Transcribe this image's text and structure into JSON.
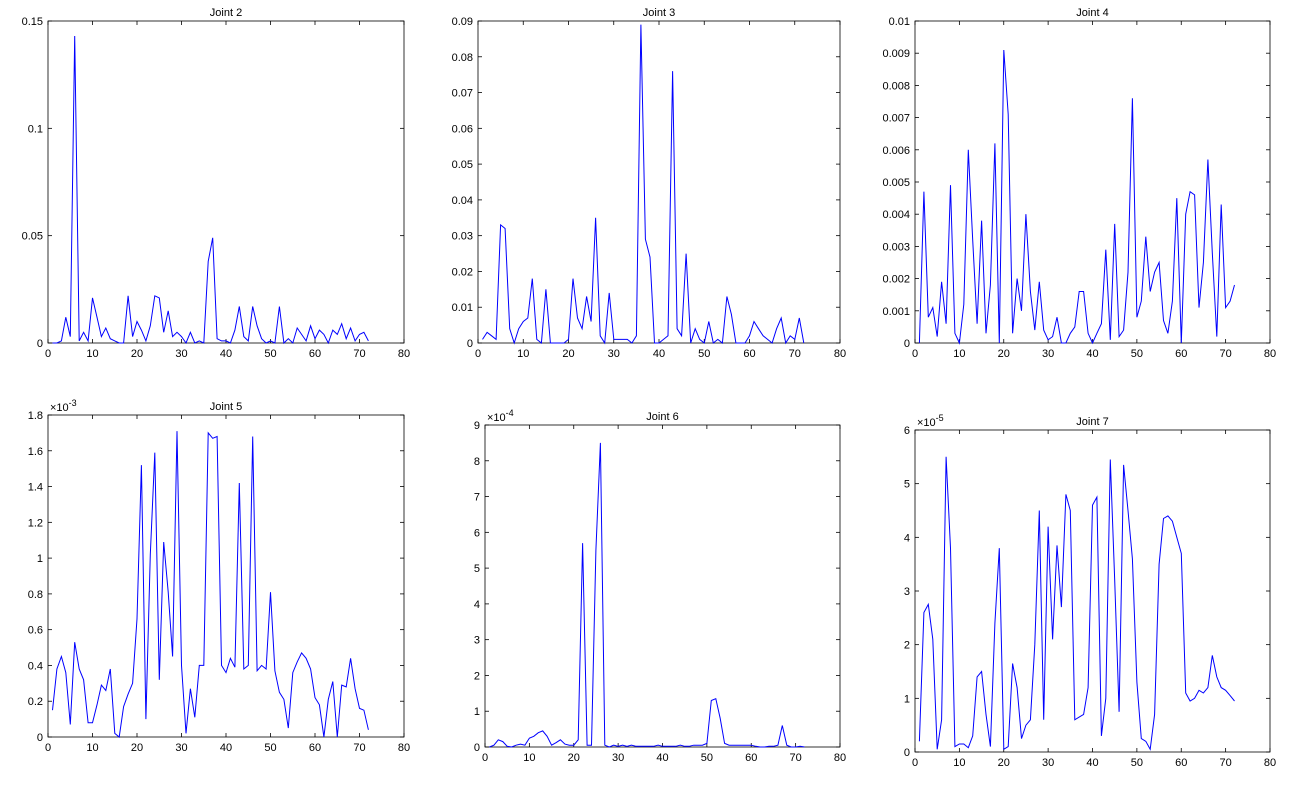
{
  "chart_data": [
    {
      "type": "line",
      "title": "Joint 2",
      "xlim": [
        0,
        80
      ],
      "ylim": [
        0,
        0.15
      ],
      "xticks": [
        "0",
        "10",
        "20",
        "30",
        "40",
        "50",
        "60",
        "70",
        "80"
      ],
      "yticks": [
        "0",
        "0.05",
        "0.1",
        "0.15"
      ],
      "exponent": "",
      "color": "#0000ff",
      "x": [
        1,
        2,
        3,
        4,
        5,
        6,
        7,
        8,
        9,
        10,
        11,
        12,
        13,
        14,
        15,
        16,
        17,
        18,
        19,
        20,
        21,
        22,
        23,
        24,
        25,
        26,
        27,
        28,
        29,
        30,
        31,
        32,
        33,
        34,
        35,
        36,
        37,
        38,
        39,
        40,
        41,
        42,
        43,
        44,
        45,
        46,
        47,
        48,
        49,
        50,
        51,
        52,
        53,
        54,
        55,
        56,
        57,
        58,
        59,
        60,
        61,
        62,
        63,
        64,
        65,
        66,
        67,
        68,
        69,
        70,
        71,
        72
      ],
      "y": [
        0,
        0,
        0.001,
        0.012,
        0.003,
        0.143,
        0.001,
        0.005,
        0.001,
        0.021,
        0.012,
        0.003,
        0.007,
        0.002,
        0.001,
        0,
        0,
        0.022,
        0.003,
        0.01,
        0.006,
        0.001,
        0.008,
        0.022,
        0.021,
        0.005,
        0.015,
        0.003,
        0.005,
        0.003,
        0,
        0.005,
        0,
        0.001,
        0,
        0.038,
        0.049,
        0.002,
        0.001,
        0.001,
        0,
        0.006,
        0.017,
        0.003,
        0.001,
        0.017,
        0.008,
        0.002,
        0,
        0.001,
        0,
        0.017,
        0,
        0.002,
        0,
        0.007,
        0.004,
        0.001,
        0.008,
        0.002,
        0.006,
        0.004,
        0,
        0.006,
        0.004,
        0.009,
        0.002,
        0.007,
        0.001,
        0.004,
        0.005,
        0.001
      ]
    },
    {
      "type": "line",
      "title": "Joint 3",
      "xlim": [
        0,
        80
      ],
      "ylim": [
        0,
        0.09
      ],
      "xticks": [
        "0",
        "10",
        "20",
        "30",
        "40",
        "50",
        "60",
        "70",
        "80"
      ],
      "yticks": [
        "0",
        "0.01",
        "0.02",
        "0.03",
        "0.04",
        "0.05",
        "0.06",
        "0.07",
        "0.08",
        "0.09"
      ],
      "exponent": "",
      "color": "#0000ff",
      "x": [
        1,
        2,
        3,
        4,
        5,
        6,
        7,
        8,
        9,
        10,
        11,
        12,
        13,
        14,
        15,
        16,
        17,
        18,
        19,
        20,
        21,
        22,
        23,
        24,
        25,
        26,
        27,
        28,
        29,
        30,
        31,
        32,
        33,
        34,
        35,
        36,
        37,
        38,
        39,
        40,
        41,
        42,
        43,
        44,
        45,
        46,
        47,
        48,
        49,
        50,
        51,
        52,
        53,
        54,
        55,
        56,
        57,
        58,
        59,
        60,
        61,
        62,
        63,
        64,
        65,
        66,
        67,
        68,
        69,
        70,
        71,
        72
      ],
      "y": [
        0.001,
        0.003,
        0.002,
        0.001,
        0.033,
        0.032,
        0.004,
        0,
        0.004,
        0.006,
        0.007,
        0.018,
        0.001,
        0,
        0.015,
        0,
        0,
        0,
        0,
        0.001,
        0.018,
        0.007,
        0.004,
        0.013,
        0.006,
        0.035,
        0.002,
        0,
        0.014,
        0.001,
        0.001,
        0.001,
        0.001,
        0,
        0.002,
        0.089,
        0.029,
        0.024,
        0,
        0,
        0.001,
        0.002,
        0.076,
        0.004,
        0.002,
        0.025,
        0,
        0.004,
        0.001,
        0,
        0.006,
        0,
        0.001,
        0,
        0.013,
        0.008,
        0,
        0,
        0,
        0.002,
        0.006,
        0.004,
        0.002,
        0.001,
        0,
        0.004,
        0.007,
        0,
        0.002,
        0.001,
        0.007,
        0
      ]
    },
    {
      "type": "line",
      "title": "Joint 4",
      "xlim": [
        0,
        80
      ],
      "ylim": [
        0,
        0.01
      ],
      "xticks": [
        "0",
        "10",
        "20",
        "30",
        "40",
        "50",
        "60",
        "70",
        "80"
      ],
      "yticks": [
        "0",
        "0.001",
        "0.002",
        "0.003",
        "0.004",
        "0.005",
        "0.006",
        "0.007",
        "0.008",
        "0.009",
        "0.01"
      ],
      "exponent": "",
      "color": "#0000ff",
      "x": [
        1,
        2,
        3,
        4,
        5,
        6,
        7,
        8,
        9,
        10,
        11,
        12,
        13,
        14,
        15,
        16,
        17,
        18,
        19,
        20,
        21,
        22,
        23,
        24,
        25,
        26,
        27,
        28,
        29,
        30,
        31,
        32,
        33,
        34,
        35,
        36,
        37,
        38,
        39,
        40,
        41,
        42,
        43,
        44,
        45,
        46,
        47,
        48,
        49,
        50,
        51,
        52,
        53,
        54,
        55,
        56,
        57,
        58,
        59,
        60,
        61,
        62,
        63,
        64,
        65,
        66,
        67,
        68,
        69,
        70,
        71,
        72
      ],
      "y": [
        0,
        0.0047,
        0.0008,
        0.0011,
        0.0002,
        0.0019,
        0.0006,
        0.0049,
        0.0003,
        0,
        0.0012,
        0.006,
        0.0032,
        0.0006,
        0.0038,
        0.0003,
        0.0018,
        0.0062,
        0,
        0.0091,
        0.0071,
        0.0003,
        0.002,
        0.001,
        0.004,
        0.0016,
        0.0004,
        0.0019,
        0.0004,
        0.0001,
        0.0002,
        0.0008,
        0,
        0,
        0.0003,
        0.0005,
        0.0016,
        0.0016,
        0.0003,
        0,
        0.0003,
        0.0006,
        0.0029,
        0.0001,
        0.0037,
        0.0002,
        0.0004,
        0.0022,
        0.0076,
        0.0008,
        0.0013,
        0.0033,
        0.0016,
        0.0022,
        0.0025,
        0.0007,
        0.0003,
        0.0013,
        0.0045,
        0,
        0.004,
        0.0047,
        0.0046,
        0.0011,
        0.0025,
        0.0057,
        0.0028,
        0.0002,
        0.0043,
        0.0011,
        0.0013,
        0.0018
      ]
    },
    {
      "type": "line",
      "title": "Joint 5",
      "xlim": [
        0,
        80
      ],
      "ylim": [
        0,
        1.8
      ],
      "xticks": [
        "0",
        "10",
        "20",
        "30",
        "40",
        "50",
        "60",
        "70",
        "80"
      ],
      "yticks": [
        "0",
        "0.2",
        "0.4",
        "0.6",
        "0.8",
        "1",
        "1.2",
        "1.4",
        "1.6",
        "1.8"
      ],
      "exponent": "-3",
      "color": "#0000ff",
      "x": [
        1,
        2,
        3,
        4,
        5,
        6,
        7,
        8,
        9,
        10,
        11,
        12,
        13,
        14,
        15,
        16,
        17,
        18,
        19,
        20,
        21,
        22,
        23,
        24,
        25,
        26,
        27,
        28,
        29,
        30,
        31,
        32,
        33,
        34,
        35,
        36,
        37,
        38,
        39,
        40,
        41,
        42,
        43,
        44,
        45,
        46,
        47,
        48,
        49,
        50,
        51,
        52,
        53,
        54,
        55,
        56,
        57,
        58,
        59,
        60,
        61,
        62,
        63,
        64,
        65,
        66,
        67,
        68,
        69,
        70,
        71,
        72
      ],
      "y": [
        0.15,
        0.38,
        0.45,
        0.36,
        0.07,
        0.53,
        0.38,
        0.32,
        0.08,
        0.08,
        0.18,
        0.29,
        0.26,
        0.38,
        0.02,
        0,
        0.17,
        0.24,
        0.3,
        0.66,
        1.52,
        0.1,
        1.02,
        1.59,
        0.32,
        1.09,
        0.81,
        0.45,
        1.71,
        0.4,
        0.02,
        0.27,
        0.11,
        0.4,
        0.4,
        1.7,
        1.67,
        1.68,
        0.4,
        0.36,
        0.44,
        0.39,
        1.42,
        0.38,
        0.4,
        1.68,
        0.37,
        0.4,
        0.38,
        0.81,
        0.37,
        0.25,
        0.21,
        0.05,
        0.36,
        0.42,
        0.47,
        0.44,
        0.38,
        0.22,
        0.18,
        0,
        0.21,
        0.31,
        0,
        0.29,
        0.28,
        0.44,
        0.27,
        0.16,
        0.15,
        0.04
      ]
    },
    {
      "type": "line",
      "title": "Joint 6",
      "xlim": [
        0,
        80
      ],
      "ylim": [
        0,
        9
      ],
      "xticks": [
        "0",
        "10",
        "20",
        "30",
        "40",
        "50",
        "60",
        "70",
        "80"
      ],
      "yticks": [
        "0",
        "1",
        "2",
        "3",
        "4",
        "5",
        "6",
        "7",
        "8",
        "9"
      ],
      "exponent": "-4",
      "color": "#0000ff",
      "x": [
        1,
        2,
        3,
        4,
        5,
        6,
        7,
        8,
        9,
        10,
        11,
        12,
        13,
        14,
        15,
        16,
        17,
        18,
        19,
        20,
        21,
        22,
        23,
        24,
        25,
        26,
        27,
        28,
        29,
        30,
        31,
        32,
        33,
        34,
        35,
        36,
        37,
        38,
        39,
        40,
        41,
        42,
        43,
        44,
        45,
        46,
        47,
        48,
        49,
        50,
        51,
        52,
        53,
        54,
        55,
        56,
        57,
        58,
        59,
        60,
        61,
        62,
        63,
        64,
        65,
        66,
        67,
        68,
        69,
        70,
        71,
        72
      ],
      "y": [
        0,
        0.05,
        0.2,
        0.15,
        0.02,
        0,
        0.05,
        0.08,
        0.05,
        0.25,
        0.3,
        0.4,
        0.45,
        0.3,
        0.05,
        0.12,
        0.2,
        0.08,
        0.05,
        0.05,
        0.2,
        5.7,
        0.05,
        0.05,
        5.5,
        8.5,
        0.05,
        0,
        0.05,
        0.02,
        0.05,
        0.02,
        0.05,
        0.02,
        0.02,
        0.02,
        0.02,
        0.02,
        0.05,
        0.02,
        0.02,
        0.02,
        0.02,
        0.05,
        0.02,
        0.02,
        0.05,
        0.05,
        0.05,
        0.1,
        1.3,
        1.35,
        0.8,
        0.1,
        0.05,
        0.05,
        0.05,
        0.05,
        0.05,
        0.05,
        0.02,
        0,
        0,
        0.02,
        0.02,
        0.05,
        0.6,
        0.05,
        0,
        0,
        0.02,
        0
      ]
    },
    {
      "type": "line",
      "title": "Joint 7",
      "xlim": [
        0,
        80
      ],
      "ylim": [
        0,
        6
      ],
      "xticks": [
        "0",
        "10",
        "20",
        "30",
        "40",
        "50",
        "60",
        "70",
        "80"
      ],
      "yticks": [
        "0",
        "1",
        "2",
        "3",
        "4",
        "5",
        "6"
      ],
      "exponent": "-5",
      "color": "#0000ff",
      "x": [
        1,
        2,
        3,
        4,
        5,
        6,
        7,
        8,
        9,
        10,
        11,
        12,
        13,
        14,
        15,
        16,
        17,
        18,
        19,
        20,
        21,
        22,
        23,
        24,
        25,
        26,
        27,
        28,
        29,
        30,
        31,
        32,
        33,
        34,
        35,
        36,
        37,
        38,
        39,
        40,
        41,
        42,
        43,
        44,
        45,
        46,
        47,
        48,
        49,
        50,
        51,
        52,
        53,
        54,
        55,
        56,
        57,
        58,
        59,
        60,
        61,
        62,
        63,
        64,
        65,
        66,
        67,
        68,
        69,
        70,
        71,
        72
      ],
      "y": [
        0.2,
        2.6,
        2.75,
        2.1,
        0.05,
        0.6,
        5.5,
        3.8,
        0.1,
        0.15,
        0.15,
        0.08,
        0.3,
        1.4,
        1.5,
        0.7,
        0.1,
        2.4,
        3.8,
        0.05,
        0.1,
        1.65,
        1.2,
        0.25,
        0.5,
        0.6,
        2.0,
        4.5,
        0.6,
        4.2,
        2.1,
        3.85,
        2.7,
        4.8,
        4.5,
        0.6,
        0.65,
        0.7,
        1.2,
        4.6,
        4.75,
        0.3,
        1.0,
        5.45,
        3.2,
        0.75,
        5.35,
        4.5,
        3.6,
        1.3,
        0.25,
        0.2,
        0.05,
        0.7,
        3.5,
        4.35,
        4.4,
        4.3,
        4.0,
        3.7,
        1.1,
        0.95,
        1.0,
        1.15,
        1.1,
        1.2,
        1.8,
        1.4,
        1.2,
        1.15,
        1.05,
        0.95
      ]
    }
  ]
}
